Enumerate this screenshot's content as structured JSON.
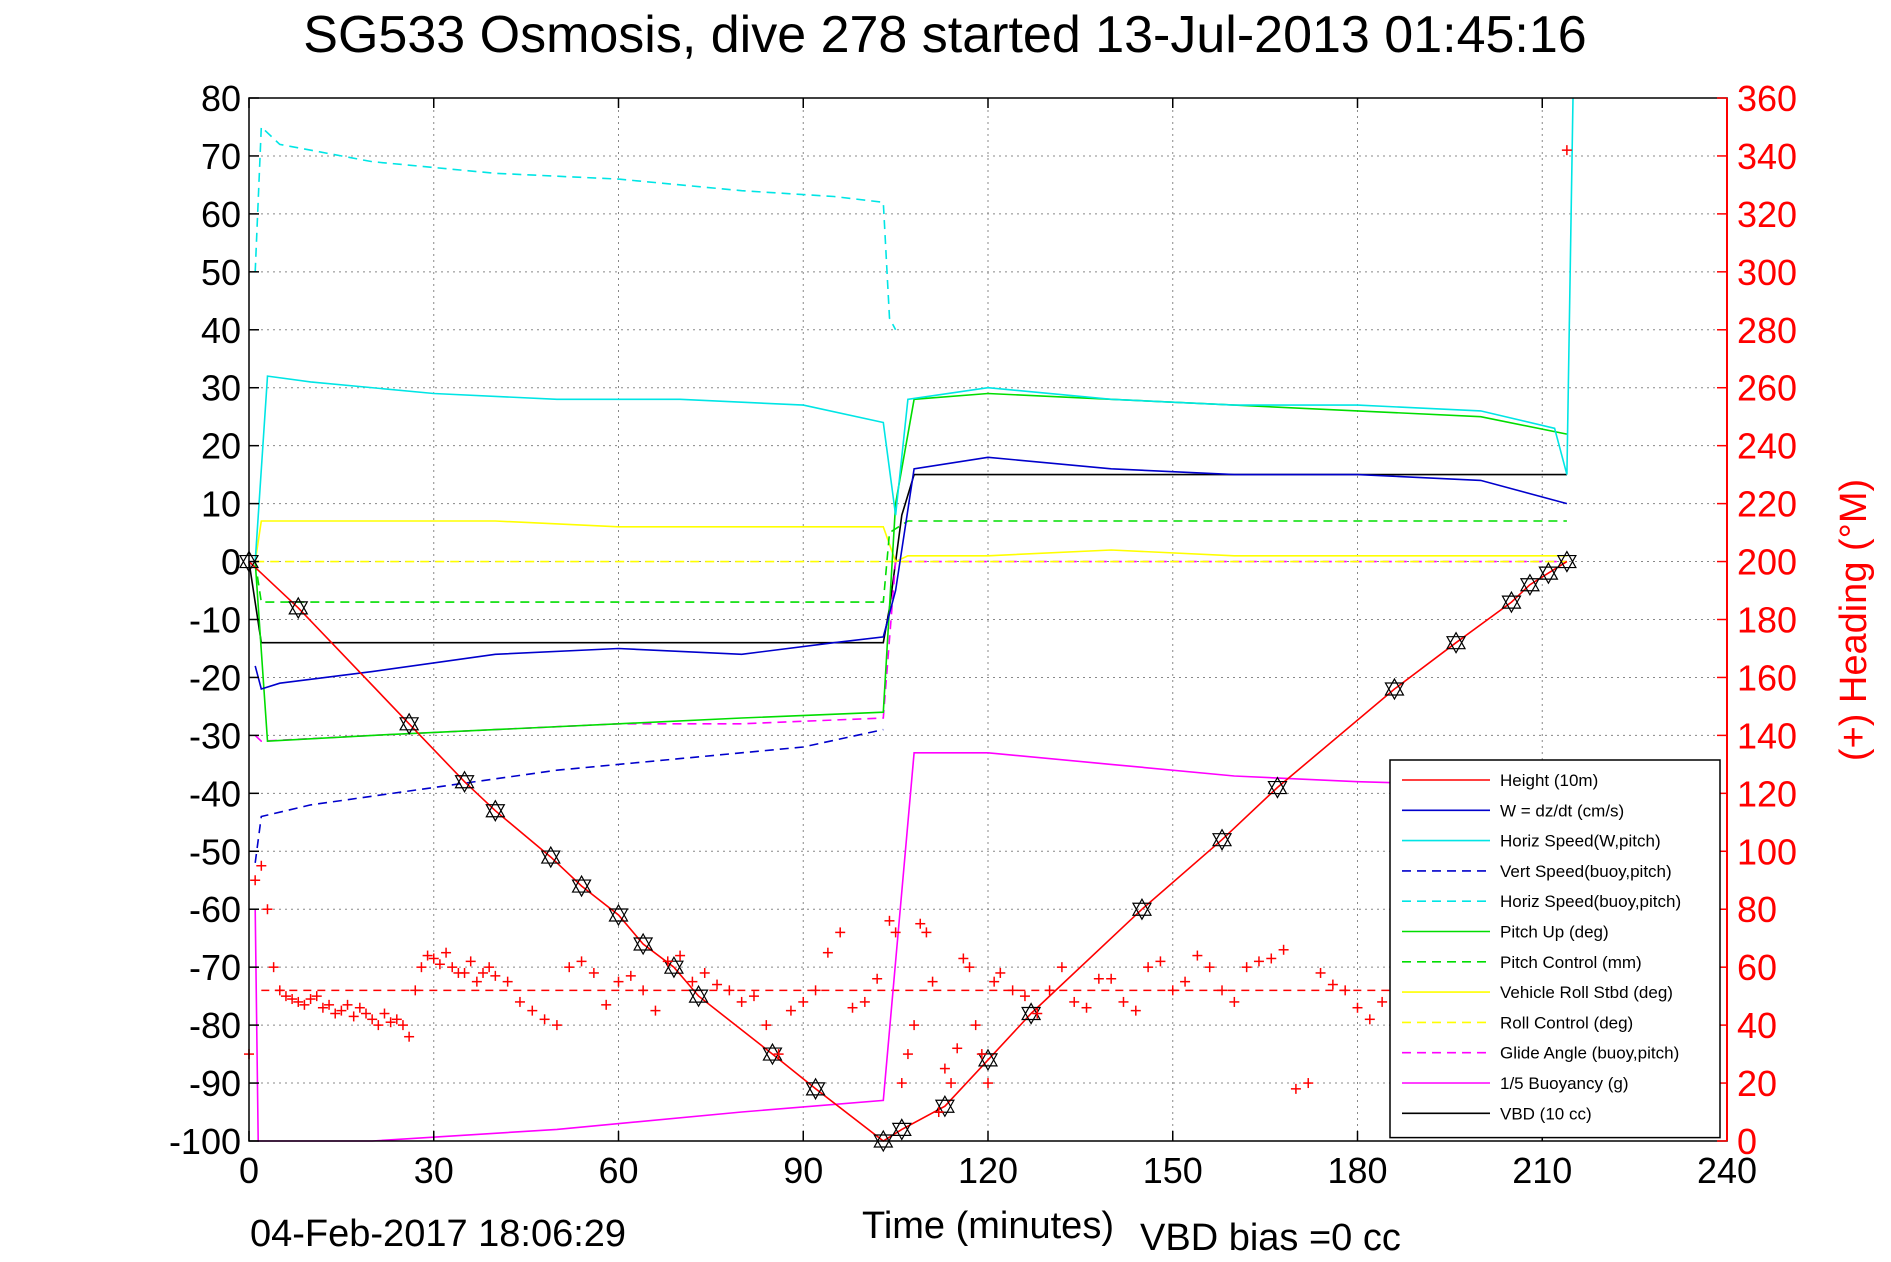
{
  "title": "SG533 Osmosis, dive 278 started 13-Jul-2013 01:45:16",
  "footer_left": "04-Feb-2017 18:06:29",
  "footer_right": "VBD bias =0 cc",
  "chart_data": {
    "type": "line",
    "xlabel": "Time (minutes)",
    "ylabel_left": "",
    "ylabel_right": "(+) Heading (°M)",
    "xlim": [
      0,
      240
    ],
    "ylim_left": [
      -100,
      80
    ],
    "ylim_right": [
      0,
      360
    ],
    "x_ticks": [
      "0",
      "30",
      "60",
      "90",
      "120",
      "150",
      "180",
      "210",
      "240"
    ],
    "y_ticks_left": [
      "80",
      "70",
      "60",
      "50",
      "40",
      "30",
      "20",
      "10",
      "0",
      "-10",
      "-20",
      "-30",
      "-40",
      "-50",
      "-60",
      "-70",
      "-80",
      "-90",
      "-100"
    ],
    "y_ticks_right": [
      "360",
      "340",
      "320",
      "300",
      "280",
      "260",
      "240",
      "220",
      "200",
      "180",
      "160",
      "140",
      "120",
      "100",
      "80",
      "60",
      "40",
      "20",
      "0"
    ],
    "grid": true,
    "legend_position": "bottom-right",
    "colors": {
      "red": "#ff0000",
      "blue": "#0000cc",
      "cyan": "#00e5e5",
      "green": "#00dd00",
      "yellow": "#ffff00",
      "magenta": "#ff00ff",
      "black": "#000000",
      "axis_right": "#ff0000"
    },
    "series": [
      {
        "name": "Height (10m)",
        "color": "#ff0000",
        "style": "solid",
        "x": [
          0,
          8,
          26,
          35,
          40,
          49,
          54,
          60,
          64,
          69,
          73,
          85,
          92,
          103,
          106,
          113,
          120,
          127,
          145,
          158,
          167,
          186,
          196,
          205,
          208,
          211,
          214
        ],
        "y": [
          0,
          -8,
          -28,
          -38,
          -43,
          -51,
          -56,
          -61,
          -66,
          -70,
          -75,
          -85,
          -91,
          -100,
          -98,
          -94,
          -86,
          -78,
          -60,
          -48,
          -39,
          -22,
          -14,
          -7,
          -4,
          -2,
          0
        ]
      },
      {
        "name": "W = dz/dt (cm/s)",
        "color": "#0000cc",
        "style": "solid",
        "x": [
          1,
          2,
          5,
          20,
          40,
          60,
          80,
          95,
          103,
          105,
          108,
          120,
          140,
          160,
          180,
          200,
          214
        ],
        "y": [
          -18,
          -22,
          -21,
          -19,
          -16,
          -15,
          -16,
          -14,
          -13,
          -5,
          16,
          18,
          16,
          15,
          15,
          14,
          10
        ]
      },
      {
        "name": "Horiz Speed(W,pitch)",
        "color": "#00e5e5",
        "style": "solid",
        "x": [
          1,
          3,
          10,
          30,
          50,
          70,
          90,
          103,
          105,
          107,
          120,
          140,
          160,
          180,
          200,
          212,
          214,
          215
        ],
        "y": [
          0,
          32,
          31,
          29,
          28,
          28,
          27,
          24,
          8,
          28,
          30,
          28,
          27,
          27,
          26,
          23,
          15,
          80
        ]
      },
      {
        "name": "Vert Speed(buoy,pitch)",
        "color": "#0000cc",
        "style": "dashed",
        "x": [
          1,
          2,
          10,
          30,
          50,
          70,
          90,
          103
        ],
        "y": [
          -52,
          -44,
          -42,
          -39,
          -36,
          -34,
          -32,
          -29
        ]
      },
      {
        "name": "Horiz Speed(buoy,pitch)",
        "color": "#00e5e5",
        "style": "dashed",
        "x": [
          1,
          2,
          5,
          20,
          40,
          60,
          80,
          95,
          103,
          104,
          105
        ],
        "y": [
          50,
          75,
          72,
          69,
          67,
          66,
          64,
          63,
          62,
          42,
          40
        ]
      },
      {
        "name": "Pitch Up (deg)",
        "color": "#00dd00",
        "style": "solid",
        "x": [
          1,
          3,
          20,
          40,
          60,
          80,
          103,
          105,
          108,
          120,
          140,
          160,
          180,
          200,
          214
        ],
        "y": [
          0,
          -31,
          -30,
          -29,
          -28,
          -27,
          -26,
          10,
          28,
          29,
          28,
          27,
          26,
          25,
          22
        ]
      },
      {
        "name": "Pitch Control (mm)",
        "color": "#00dd00",
        "style": "dashed",
        "x": [
          1,
          2,
          20,
          40,
          60,
          80,
          103,
          104,
          107,
          214
        ],
        "y": [
          0,
          -7,
          -7,
          -7,
          -7,
          -7,
          -7,
          5,
          7,
          7
        ]
      },
      {
        "name": "Vehicle Roll Stbd (deg)",
        "color": "#ffff00",
        "style": "solid",
        "x": [
          1,
          2,
          20,
          40,
          60,
          80,
          103,
          105,
          107,
          120,
          140,
          160,
          180,
          200,
          214
        ],
        "y": [
          0,
          7,
          7,
          7,
          6,
          6,
          6,
          0,
          1,
          1,
          2,
          1,
          1,
          1,
          1
        ]
      },
      {
        "name": "Roll Control (deg)",
        "color": "#ffff00",
        "style": "dashed",
        "x": [
          1,
          2,
          103,
          104,
          214
        ],
        "y": [
          0,
          0,
          0,
          0,
          0
        ]
      },
      {
        "name": "Glide Angle (buoy,pitch)",
        "color": "#ff00ff",
        "style": "dashed",
        "x": [
          1,
          2,
          20,
          40,
          60,
          80,
          103,
          105,
          214
        ],
        "y": [
          -30,
          -31,
          -30,
          -29,
          -28,
          -28,
          -27,
          0,
          0
        ]
      },
      {
        "name": "1/5 Buoyancy (g)",
        "color": "#ff00ff",
        "style": "solid",
        "x": [
          1,
          1.5,
          20,
          50,
          80,
          103,
          108,
          120,
          140,
          160,
          180,
          214
        ],
        "y": [
          -60,
          -100,
          -100,
          -98,
          -95,
          -93,
          -33,
          -33,
          -35,
          -37,
          -38,
          -39
        ]
      },
      {
        "name": "VBD (10 cc)",
        "color": "#000000",
        "style": "solid",
        "x": [
          0,
          2,
          30,
          60,
          90,
          103,
          104,
          106,
          108,
          120,
          150,
          180,
          214
        ],
        "y": [
          0,
          -14,
          -14,
          -14,
          -14,
          -14,
          -8,
          8,
          15,
          15,
          15,
          15,
          15
        ]
      }
    ],
    "heading": {
      "name": "(+) Heading",
      "axis": "right",
      "color": "#ff0000",
      "marker": "+",
      "mean": 52,
      "x": [
        0,
        1,
        2,
        3,
        4,
        5,
        6,
        7,
        8,
        9,
        10,
        11,
        12,
        13,
        14,
        15,
        16,
        17,
        18,
        19,
        20,
        21,
        22,
        23,
        24,
        25,
        26,
        27,
        28,
        29,
        30,
        31,
        32,
        33,
        34,
        35,
        36,
        37,
        38,
        39,
        40,
        42,
        44,
        46,
        48,
        50,
        52,
        54,
        56,
        58,
        60,
        62,
        64,
        66,
        68,
        70,
        72,
        74,
        76,
        78,
        80,
        82,
        84,
        86,
        88,
        90,
        92,
        94,
        96,
        98,
        100,
        102,
        104,
        105,
        106,
        107,
        108,
        109,
        110,
        111,
        112,
        113,
        114,
        115,
        116,
        117,
        118,
        119,
        120,
        121,
        122,
        124,
        126,
        128,
        130,
        132,
        134,
        136,
        138,
        140,
        142,
        144,
        146,
        148,
        150,
        152,
        154,
        156,
        158,
        160,
        162,
        164,
        166,
        168,
        170,
        172,
        174,
        176,
        178,
        180,
        182,
        184,
        186,
        188,
        190,
        192,
        194,
        196,
        198,
        200,
        202,
        204,
        206,
        208,
        210,
        212,
        214
      ],
      "y": [
        30,
        90,
        95,
        80,
        60,
        52,
        50,
        49,
        48,
        47,
        49,
        50,
        46,
        47,
        44,
        45,
        47,
        43,
        46,
        44,
        42,
        40,
        44,
        41,
        42,
        40,
        36,
        52,
        60,
        64,
        63,
        61,
        65,
        60,
        58,
        58,
        62,
        55,
        58,
        60,
        57,
        55,
        48,
        45,
        42,
        40,
        60,
        62,
        58,
        47,
        55,
        57,
        52,
        45,
        62,
        64,
        55,
        58,
        54,
        52,
        48,
        50,
        40,
        30,
        45,
        48,
        52,
        65,
        72,
        46,
        48,
        56,
        76,
        72,
        20,
        30,
        40,
        75,
        72,
        55,
        10,
        25,
        20,
        32,
        63,
        60,
        40,
        30,
        20,
        55,
        58,
        52,
        50,
        44,
        52,
        60,
        48,
        46,
        56,
        56,
        48,
        45,
        60,
        62,
        52,
        55,
        64,
        60,
        52,
        48,
        60,
        62,
        63,
        66,
        18,
        20,
        58,
        54,
        52,
        46,
        42,
        48,
        40,
        36,
        38,
        44,
        50,
        52,
        54,
        60,
        62,
        63,
        64,
        64,
        62,
        60,
        342
      ]
    }
  }
}
